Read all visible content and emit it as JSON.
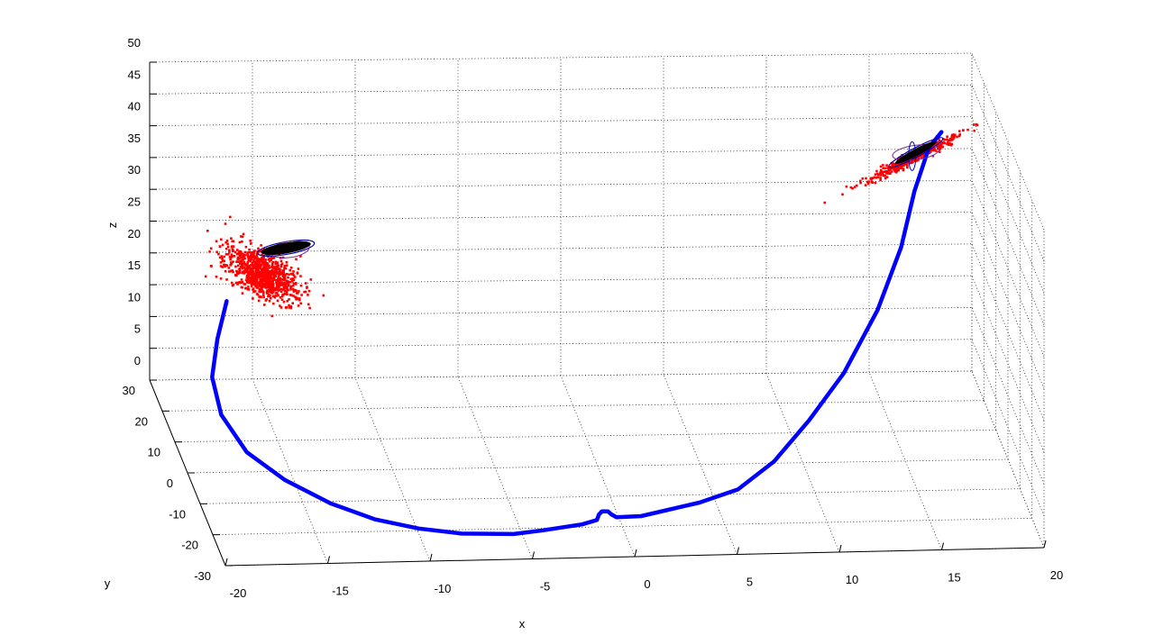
{
  "chart_data": {
    "type": "scatter",
    "title": "",
    "xlabel": "x",
    "ylabel": "y",
    "zlabel": "z",
    "xlim": [
      -20,
      20
    ],
    "ylim": [
      -30,
      30
    ],
    "zlim": [
      0,
      50
    ],
    "x_ticks": [
      "-20",
      "-15",
      "-10",
      "-5",
      "0",
      "5",
      "10",
      "15",
      "20"
    ],
    "y_ticks": [
      "-30",
      "-20",
      "-10",
      "0",
      "10",
      "20",
      "30"
    ],
    "z_ticks": [
      "0",
      "5",
      "10",
      "15",
      "20",
      "25",
      "30",
      "35",
      "40",
      "45",
      "50"
    ],
    "grid": true,
    "legend": "none",
    "series": [
      {
        "kind": "trajectory",
        "color": "#0000ff",
        "points": [
          [
            -17.6,
            8,
            23
          ],
          [
            -18.3,
            4,
            19
          ],
          [
            -18.8,
            0,
            15
          ],
          [
            -18.6,
            -4,
            11
          ],
          [
            -17.6,
            -8,
            7
          ],
          [
            -16.0,
            -12,
            4.5
          ],
          [
            -14.0,
            -16,
            2.6
          ],
          [
            -12.0,
            -19,
            1.4
          ],
          [
            -10.0,
            -21,
            0.8
          ],
          [
            -8.0,
            -22.5,
            0.6
          ],
          [
            -5.5,
            -23,
            0.6
          ],
          [
            -4.0,
            -22,
            0.6
          ],
          [
            -2.0,
            -20.5,
            0.7
          ],
          [
            -1.2,
            -19.2,
            0.7
          ],
          [
            -1.0,
            -17.6,
            0.8
          ],
          [
            -0.8,
            -16.6,
            0.8
          ],
          [
            -0.5,
            -16.6,
            0.8
          ],
          [
            -0.4,
            -17.6,
            0.8
          ],
          [
            -0.2,
            -18.6,
            0.8
          ],
          [
            1.0,
            -18.6,
            0.9
          ],
          [
            4.0,
            -16,
            1.6
          ],
          [
            6.0,
            -14,
            2.6
          ],
          [
            8.0,
            -10,
            5
          ],
          [
            10.0,
            -5,
            9
          ],
          [
            12.0,
            0,
            14
          ],
          [
            14.0,
            6,
            21
          ],
          [
            15.5,
            12,
            28
          ],
          [
            16.5,
            18,
            34
          ],
          [
            17.5,
            23,
            38.5
          ],
          [
            18.2,
            24.5,
            40.2
          ]
        ]
      },
      {
        "kind": "particle-cloud",
        "color": "#ff0000",
        "center": [
          -15.8,
          10,
          26.5
        ],
        "count": 900
      },
      {
        "kind": "particle-cloud",
        "color": "#ff0000",
        "center": [
          16.6,
          22,
          37.5
        ],
        "count": 400
      },
      {
        "kind": "ellipsoid",
        "color": "#000000",
        "outline": "#0000aa",
        "center": [
          -14.5,
          11.5,
          29.5
        ]
      },
      {
        "kind": "ellipsoid",
        "color": "#000000",
        "outline": "#0000aa",
        "center": [
          16.8,
          22,
          38.2
        ]
      }
    ]
  }
}
